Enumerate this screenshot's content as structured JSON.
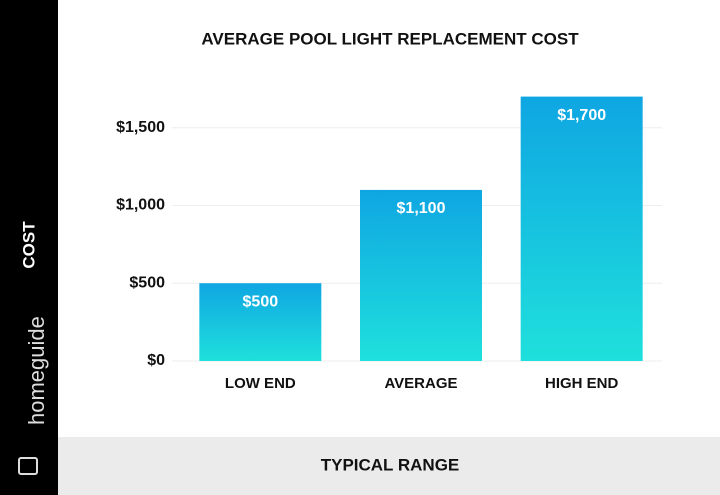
{
  "chart_data": {
    "type": "bar",
    "title": "AVERAGE POOL LIGHT REPLACEMENT COST",
    "y_label": "COST",
    "x_label": "TYPICAL RANGE",
    "categories": [
      "LOW END",
      "AVERAGE",
      "HIGH END"
    ],
    "values": [
      500,
      1100,
      1700
    ],
    "value_labels": [
      "$500",
      "$1,100",
      "$1,700"
    ],
    "color": "#13b8e3",
    "ylim": [
      0,
      1700
    ],
    "yticks": [
      {
        "value": 0,
        "label": "$0"
      },
      {
        "value": 500,
        "label": "$500"
      },
      {
        "value": 1000,
        "label": "$1,000"
      },
      {
        "value": 1500,
        "label": "$1,500"
      }
    ],
    "grid": true
  },
  "brand": "homeguide"
}
